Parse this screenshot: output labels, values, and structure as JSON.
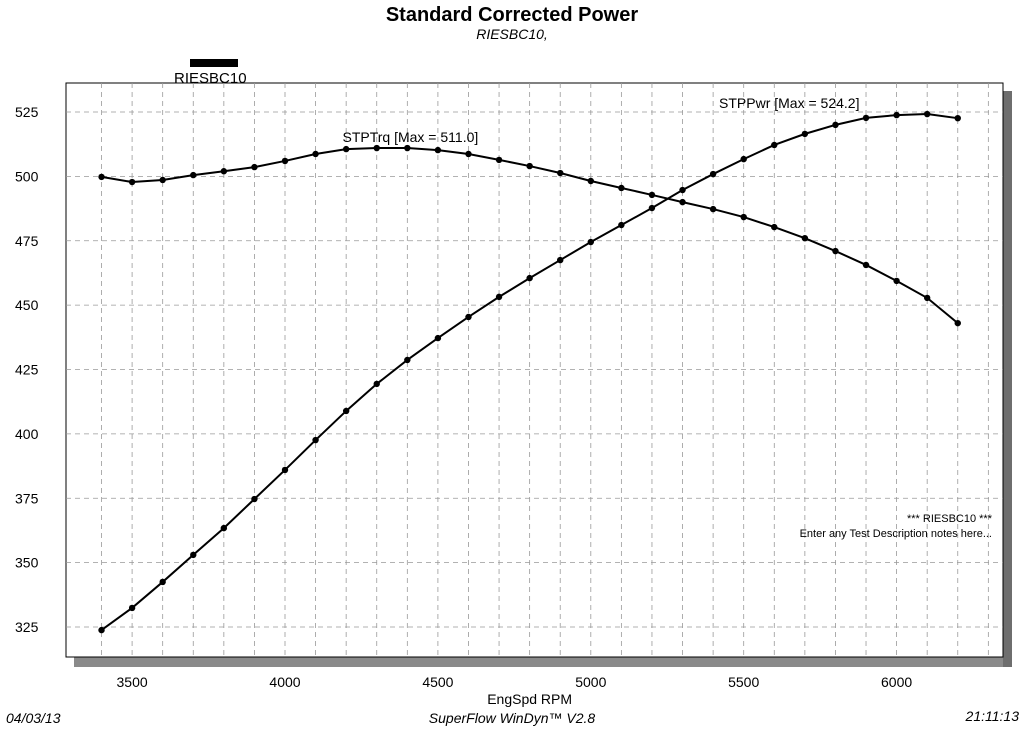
{
  "header": {
    "title": "Standard Corrected Power",
    "subtitle": "RIESBC10,"
  },
  "footer": {
    "date": "04/03/13",
    "app": "SuperFlow WinDyn™ V2.8",
    "time": "21:11:13"
  },
  "notes": {
    "line1": "*** RIESBC10 ***",
    "line2": "Enter any Test Description notes here..."
  },
  "chart_data": {
    "type": "line",
    "title": "Standard Corrected Power",
    "subtitle": "RIESBC10,",
    "xlabel": "EngSpd  RPM",
    "ylabel": "",
    "xlim": [
      3300,
      6350
    ],
    "ylim": [
      314,
      535
    ],
    "xticks": [
      3500,
      4000,
      4500,
      5000,
      5500,
      6000
    ],
    "yticks": [
      325,
      350,
      375,
      400,
      425,
      450,
      475,
      500,
      525
    ],
    "grid": true,
    "legend": {
      "label": "RIESBC10",
      "placement": "top-left"
    },
    "x": [
      3400,
      3500,
      3600,
      3700,
      3800,
      3900,
      4000,
      4100,
      4200,
      4300,
      4400,
      4500,
      4600,
      4700,
      4800,
      4900,
      5000,
      5100,
      5200,
      5300,
      5400,
      5500,
      5600,
      5700,
      5800,
      5900,
      6000,
      6100,
      6200
    ],
    "series": [
      {
        "name": "STPTrq",
        "annotation": "STPTrq [Max = 511.0]",
        "values": [
          499.8,
          497.8,
          498.6,
          500.5,
          502.0,
          503.6,
          506.0,
          508.7,
          510.6,
          511.0,
          511.0,
          510.2,
          508.7,
          506.4,
          504.0,
          501.3,
          498.2,
          495.5,
          492.8,
          490.0,
          487.3,
          484.2,
          480.3,
          476.0,
          471.0,
          465.6,
          459.4,
          452.8,
          443.0
        ]
      },
      {
        "name": "STPPwr",
        "annotation": "STPPwr [Max = 524.2]",
        "values": [
          323.8,
          332.4,
          342.5,
          353.0,
          363.4,
          374.7,
          386.0,
          397.6,
          408.9,
          419.4,
          428.7,
          437.2,
          445.4,
          453.2,
          460.5,
          467.5,
          474.5,
          481.1,
          487.7,
          494.7,
          500.9,
          506.7,
          512.2,
          516.5,
          520.0,
          522.7,
          523.8,
          524.2,
          522.6
        ]
      }
    ]
  }
}
